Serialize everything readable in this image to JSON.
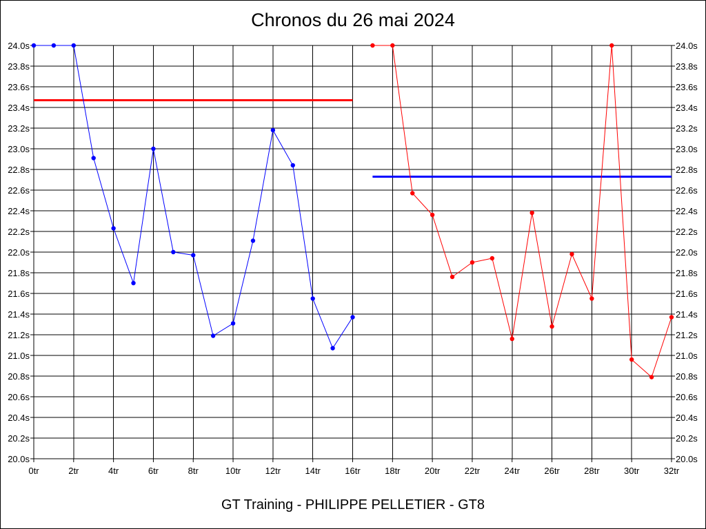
{
  "chart_data": {
    "type": "line",
    "title": "Chronos du 26 mai 2024",
    "footer": "GT Training - PHILIPPE PELLETIER - GT8",
    "xlim": [
      0,
      32
    ],
    "ylim": [
      20.0,
      24.0
    ],
    "grid": true,
    "y_tick_labels": [
      "20.0s",
      "20.2s",
      "20.4s",
      "20.6s",
      "20.8s",
      "21.0s",
      "21.2s",
      "21.4s",
      "21.6s",
      "21.8s",
      "22.0s",
      "22.2s",
      "22.4s",
      "22.6s",
      "22.8s",
      "23.0s",
      "23.2s",
      "23.4s",
      "23.6s",
      "23.8s",
      "24.0s"
    ],
    "x_tick_labels": [
      "0tr",
      "2tr",
      "4tr",
      "6tr",
      "8tr",
      "10tr",
      "12tr",
      "14tr",
      "16tr",
      "18tr",
      "20tr",
      "22tr",
      "24tr",
      "26tr",
      "28tr",
      "30tr",
      "32tr"
    ],
    "series": [
      {
        "color": "#0000ff",
        "x": [
          0,
          1,
          2,
          3,
          4,
          5,
          6,
          7,
          8,
          9,
          10,
          11,
          12,
          13,
          14,
          15,
          16
        ],
        "values": [
          24.0,
          24.0,
          24.0,
          22.91,
          22.23,
          21.7,
          23.0,
          22.0,
          21.97,
          21.19,
          21.31,
          22.11,
          23.18,
          22.84,
          21.55,
          21.07,
          21.37
        ]
      },
      {
        "color": "#ff0000",
        "x": [
          17,
          18,
          19,
          20,
          21,
          22,
          23,
          24,
          25,
          26,
          27,
          28,
          29,
          30,
          31,
          32
        ],
        "values": [
          24.0,
          24.0,
          22.57,
          22.36,
          21.76,
          21.9,
          21.94,
          21.16,
          22.38,
          21.28,
          21.98,
          21.55,
          24.0,
          20.96,
          20.79,
          21.37
        ]
      }
    ],
    "reference_lines": [
      {
        "color": "#ff0000",
        "x_range": [
          0,
          16
        ],
        "value": 23.47
      },
      {
        "color": "#0000ff",
        "x_range": [
          17,
          32
        ],
        "value": 22.73
      }
    ]
  }
}
